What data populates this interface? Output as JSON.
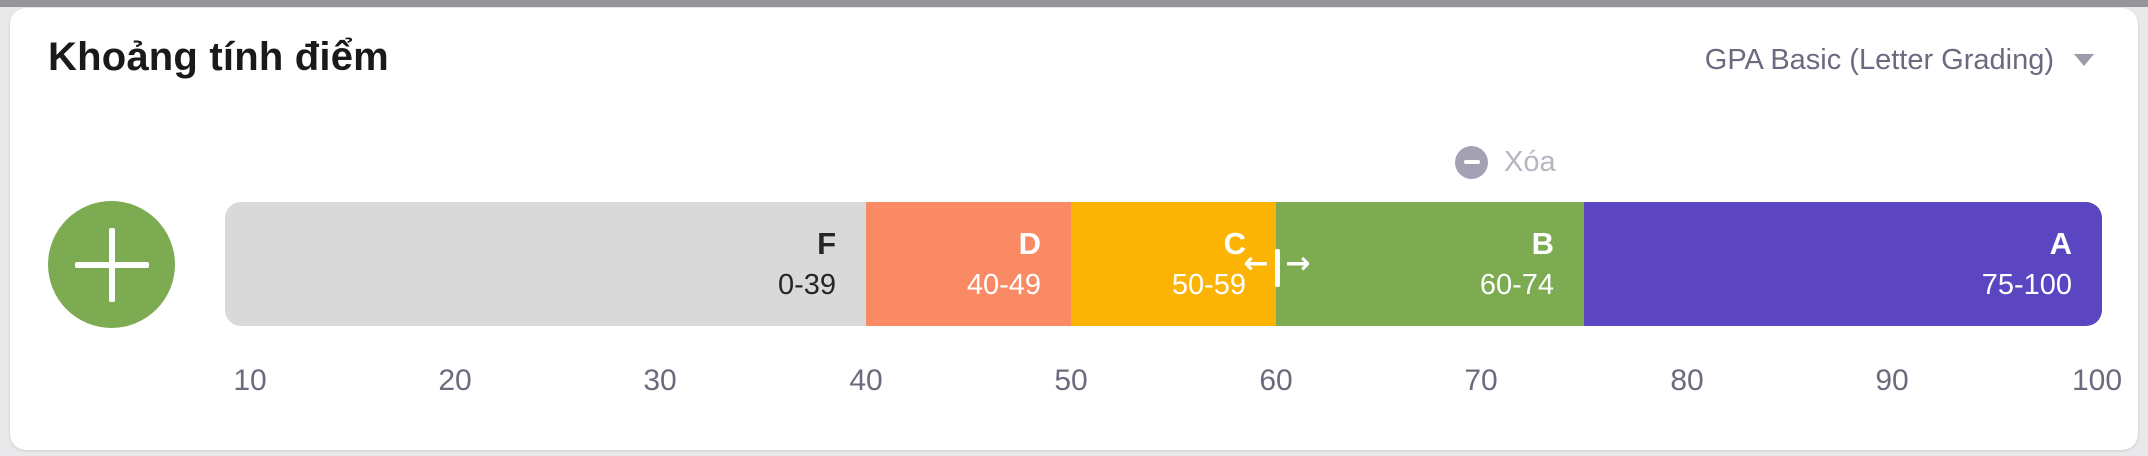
{
  "header": {
    "title": "Khoảng tính điểm",
    "grading_system": {
      "selected_label": "GPA Basic (Letter Grading)",
      "caret_icon": "chevron-down"
    }
  },
  "delete_action": {
    "label": "Xóa",
    "icon": "minus-circle",
    "circle_color": "#a2a2b4",
    "label_color": "#b6b6c2"
  },
  "add_button": {
    "icon": "plus",
    "color": "#7cab52"
  },
  "grade_scale": {
    "segments": [
      {
        "letter": "F",
        "range": "0-39",
        "min": 0,
        "max": 39,
        "color": "#d9d9da",
        "text_color": "#262626"
      },
      {
        "letter": "D",
        "range": "40-49",
        "min": 40,
        "max": 49,
        "color": "#f98a63",
        "text_color": "#ffffff"
      },
      {
        "letter": "C",
        "range": "50-59",
        "min": 50,
        "max": 59,
        "color": "#fcb404",
        "text_color": "#ffffff"
      },
      {
        "letter": "B",
        "range": "60-74",
        "min": 60,
        "max": 74,
        "color": "#7cab52",
        "text_color": "#ffffff"
      },
      {
        "letter": "A",
        "range": "75-100",
        "min": 75,
        "max": 100,
        "color": "#5b45c0",
        "text_color": "#ffffff"
      }
    ],
    "axis_ticks": [
      "10",
      "20",
      "30",
      "40",
      "50",
      "60",
      "70",
      "80",
      "90",
      "100"
    ],
    "axis_range": [
      0,
      100
    ],
    "resize_cursor": {
      "left_arrow": "←",
      "right_arrow": "→"
    }
  }
}
